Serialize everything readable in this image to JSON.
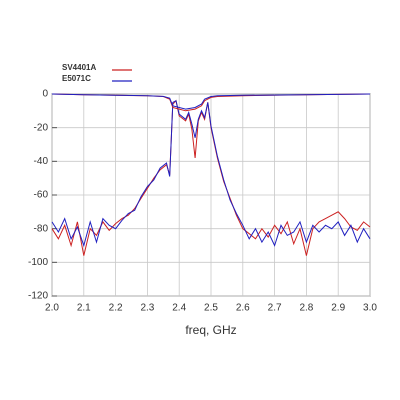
{
  "chart_data": {
    "type": "line",
    "xlabel": "freq, GHz",
    "xlim": [
      2.0,
      3.0
    ],
    "xticks": [
      {
        "value": 2.0,
        "label": "2.0"
      },
      2.1,
      2.2,
      2.3,
      2.4,
      2.5,
      2.6,
      2.7,
      2.8,
      2.9,
      {
        "value": 3.0,
        "label": "3.0"
      }
    ],
    "ylim": [
      -120,
      0
    ],
    "yticks": [
      -120,
      -100,
      -80,
      -60,
      -40,
      -20,
      0
    ],
    "grid": true,
    "legend": "top-left",
    "series": [
      {
        "name": "SV4401A",
        "color": "#cc2020",
        "x": [
          2.0,
          2.02,
          2.04,
          2.06,
          2.08,
          2.1,
          2.12,
          2.14,
          2.16,
          2.18,
          2.2,
          2.22,
          2.24,
          2.26,
          2.28,
          2.3,
          2.32,
          2.34,
          2.36,
          2.37,
          2.38,
          2.39,
          2.4,
          2.42,
          2.43,
          2.44,
          2.45,
          2.46,
          2.47,
          2.48,
          2.49,
          2.5,
          2.52,
          2.54,
          2.56,
          2.58,
          2.6,
          2.62,
          2.64,
          2.66,
          2.68,
          2.7,
          2.72,
          2.74,
          2.76,
          2.78,
          2.8,
          2.82,
          2.84,
          2.86,
          2.88,
          2.9,
          2.92,
          2.94,
          2.96,
          2.98,
          3.0
        ],
        "values": [
          -80,
          -86,
          -78,
          -90,
          -76,
          -96,
          -80,
          -84,
          -76,
          -81,
          -77,
          -74,
          -72,
          -68,
          -62,
          -56,
          -50,
          -45,
          -42,
          -48,
          -6,
          -4,
          -13,
          -16,
          -12,
          -21,
          -38,
          -16,
          -11,
          -15,
          -5,
          -20,
          -38,
          -52,
          -62,
          -72,
          -80,
          -83,
          -86,
          -80,
          -85,
          -78,
          -83,
          -76,
          -89,
          -80,
          -96,
          -80,
          -76,
          -74,
          -72,
          -70,
          -74,
          -79,
          -81,
          -76,
          -79
        ]
      },
      {
        "name": "E5071C",
        "color": "#2020c0",
        "x": [
          2.0,
          2.02,
          2.04,
          2.06,
          2.08,
          2.1,
          2.12,
          2.14,
          2.16,
          2.18,
          2.2,
          2.22,
          2.24,
          2.26,
          2.28,
          2.3,
          2.32,
          2.34,
          2.36,
          2.37,
          2.38,
          2.39,
          2.4,
          2.42,
          2.43,
          2.44,
          2.45,
          2.46,
          2.47,
          2.48,
          2.49,
          2.5,
          2.52,
          2.54,
          2.56,
          2.58,
          2.6,
          2.62,
          2.64,
          2.66,
          2.68,
          2.7,
          2.72,
          2.74,
          2.76,
          2.78,
          2.8,
          2.82,
          2.84,
          2.86,
          2.88,
          2.9,
          2.92,
          2.94,
          2.96,
          2.98,
          3.0
        ],
        "values": [
          -76,
          -82,
          -74,
          -86,
          -79,
          -90,
          -76,
          -88,
          -74,
          -78,
          -80,
          -75,
          -71,
          -69,
          -61,
          -55,
          -51,
          -44,
          -41,
          -49,
          -5,
          -4,
          -12,
          -15,
          -11,
          -18,
          -26,
          -15,
          -10,
          -14,
          -5,
          -19,
          -37,
          -51,
          -63,
          -71,
          -78,
          -86,
          -80,
          -88,
          -82,
          -90,
          -78,
          -84,
          -82,
          -76,
          -88,
          -78,
          -82,
          -78,
          -80,
          -76,
          -84,
          -78,
          -88,
          -80,
          -86
        ]
      },
      {
        "color": "#cc2020",
        "x": [
          2.0,
          2.1,
          2.2,
          2.3,
          2.35,
          2.37,
          2.38,
          2.4,
          2.42,
          2.45,
          2.47,
          2.48,
          2.5,
          2.52,
          2.6,
          2.8,
          3.0
        ],
        "values": [
          0,
          -0.5,
          -0.8,
          -1,
          -1.5,
          -3,
          -8,
          -9,
          -10,
          -9,
          -7,
          -4,
          -2,
          -1.5,
          -1,
          -0.5,
          0
        ]
      },
      {
        "color": "#2020c0",
        "x": [
          2.0,
          2.1,
          2.2,
          2.3,
          2.35,
          2.37,
          2.38,
          2.4,
          2.42,
          2.45,
          2.47,
          2.48,
          2.5,
          2.52,
          2.6,
          2.8,
          3.0
        ],
        "values": [
          0,
          -0.5,
          -0.7,
          -1,
          -1.4,
          -2.5,
          -7,
          -8,
          -9,
          -8,
          -6,
          -3,
          -1.5,
          -1,
          -0.8,
          -0.4,
          0
        ]
      }
    ]
  }
}
